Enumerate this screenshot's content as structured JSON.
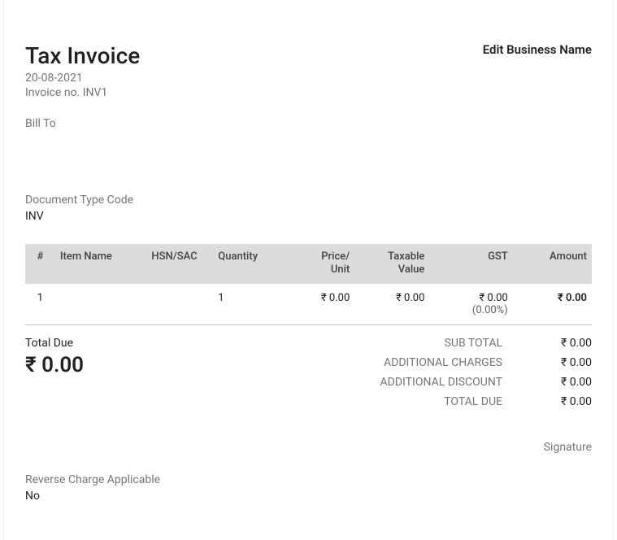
{
  "header": {
    "title": "Tax Invoice",
    "date": "20-08-2021",
    "invoice_no": "Invoice no. INV1",
    "edit_business": "Edit Business Name"
  },
  "bill_to_label": "Bill To",
  "doc_type": {
    "label": "Document Type Code",
    "value": "INV"
  },
  "columns": {
    "num": "#",
    "item_name": "Item Name",
    "hsn": "HSN/SAC",
    "qty": "Quantity",
    "price_l1": "Price/",
    "price_l2": "Unit",
    "taxable_l1": "Taxable",
    "taxable_l2": "Value",
    "gst": "GST",
    "amount": "Amount"
  },
  "rows": [
    {
      "num": "1",
      "item_name": "",
      "hsn": "",
      "qty": "1",
      "price": "₹ 0.00",
      "taxable": "₹ 0.00",
      "gst": "₹ 0.00",
      "gst_pct": "(0.00%)",
      "amount": "₹ 0.00"
    }
  ],
  "total_due": {
    "label": "Total Due",
    "amount": "₹ 0.00"
  },
  "summary": {
    "sub_total_label": "SUB TOTAL",
    "sub_total_value": "₹ 0.00",
    "add_charges_label": "ADDITIONAL CHARGES",
    "add_charges_value": "₹ 0.00",
    "add_discount_label": "ADDITIONAL DISCOUNT",
    "add_discount_value": "₹ 0.00",
    "total_due_label": "TOTAL DUE",
    "total_due_value": "₹ 0.00"
  },
  "signature_label": "Signature",
  "reverse_charge": {
    "label": "Reverse Charge Applicable",
    "value": "No"
  }
}
